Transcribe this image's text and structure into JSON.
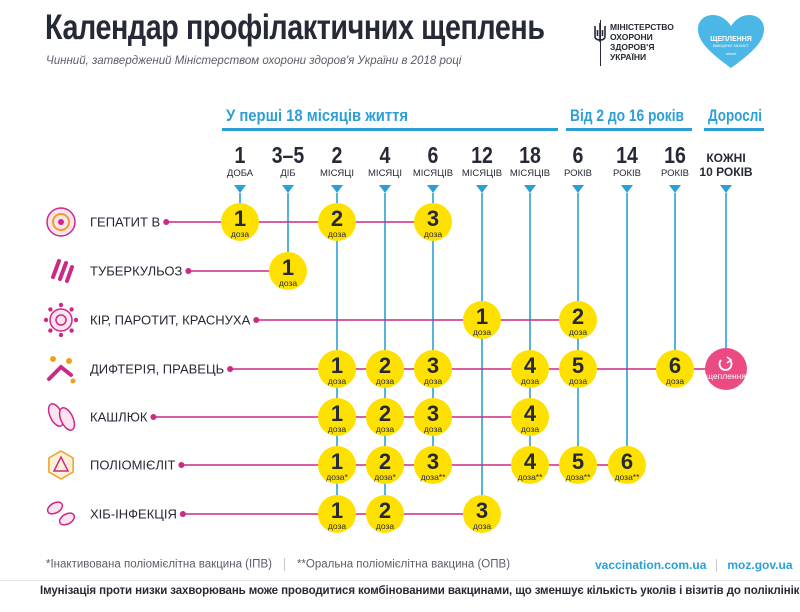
{
  "header": {
    "title": "Календар профілактичних щеплень",
    "subtitle": "Чинний, затверджений Міністерством охорони здоров'я України в 2018 році",
    "ministry_lines": [
      "МІНІСТЕРСТВО",
      "ОХОРОНИ",
      "ЗДОРОВ'Я",
      "УКРАЇНИ"
    ],
    "heart_logo": {
      "line1": "ЩЕПЛЕННЯ",
      "line2": "ВАКЦИНИ ЗАХИСТ",
      "brand": "unicef"
    }
  },
  "periods": [
    {
      "label": "У перші 18 місяців життя",
      "start_col": 0,
      "end_col": 6
    },
    {
      "label": "Від 2 до 16 років",
      "start_col": 7,
      "end_col": 9
    },
    {
      "label": "Дорослі",
      "start_col": 10,
      "end_col": 10
    }
  ],
  "ages": [
    {
      "num": "1",
      "unit": "ДОБА"
    },
    {
      "num": "3–5",
      "unit": "ДІБ"
    },
    {
      "num": "2",
      "unit": "МІСЯЦІ"
    },
    {
      "num": "4",
      "unit": "МІСЯЦІ"
    },
    {
      "num": "6",
      "unit": "МІСЯЦІВ"
    },
    {
      "num": "12",
      "unit": "МІСЯЦІВ"
    },
    {
      "num": "18",
      "unit": "МІСЯЦІВ"
    },
    {
      "num": "6",
      "unit": "РОКІВ"
    },
    {
      "num": "14",
      "unit": "РОКІВ"
    },
    {
      "num": "16",
      "unit": "РОКІВ"
    },
    {
      "num": "",
      "unit": "",
      "top": "КОЖНІ",
      "bottom": "10 РОКІВ"
    }
  ],
  "dose_word": "доза",
  "booster_label": "щеплення",
  "vaccines": [
    {
      "name": "ГЕПАТИТ B",
      "icon": "hepatitis-icon",
      "doses": [
        {
          "col": 0,
          "n": "1"
        },
        {
          "col": 2,
          "n": "2"
        },
        {
          "col": 4,
          "n": "3"
        }
      ]
    },
    {
      "name": "ТУБЕРКУЛЬОЗ",
      "icon": "tuberculosis-icon",
      "doses": [
        {
          "col": 1,
          "n": "1"
        }
      ]
    },
    {
      "name": "КІР, ПАРОТИТ, КРАСНУХА",
      "icon": "measles-icon",
      "doses": [
        {
          "col": 5,
          "n": "1"
        },
        {
          "col": 7,
          "n": "2"
        }
      ]
    },
    {
      "name": "ДИФТЕРІЯ, ПРАВЕЦЬ",
      "icon": "diphtheria-icon",
      "booster": true,
      "doses": [
        {
          "col": 2,
          "n": "1"
        },
        {
          "col": 3,
          "n": "2"
        },
        {
          "col": 4,
          "n": "3"
        },
        {
          "col": 6,
          "n": "4"
        },
        {
          "col": 7,
          "n": "5"
        },
        {
          "col": 9,
          "n": "6"
        }
      ]
    },
    {
      "name": "КАШЛЮК",
      "icon": "pertussis-icon",
      "doses": [
        {
          "col": 2,
          "n": "1"
        },
        {
          "col": 3,
          "n": "2"
        },
        {
          "col": 4,
          "n": "3"
        },
        {
          "col": 6,
          "n": "4"
        }
      ]
    },
    {
      "name": "ПОЛІОМІЄЛІТ",
      "icon": "polio-icon",
      "doses": [
        {
          "col": 2,
          "n": "1",
          "mark": "*"
        },
        {
          "col": 3,
          "n": "2",
          "mark": "*"
        },
        {
          "col": 4,
          "n": "3",
          "mark": "**"
        },
        {
          "col": 6,
          "n": "4",
          "mark": "**"
        },
        {
          "col": 7,
          "n": "5",
          "mark": "**"
        },
        {
          "col": 8,
          "n": "6",
          "mark": "**"
        }
      ]
    },
    {
      "name": "ХІБ-ІНФЕКЦІЯ",
      "icon": "hib-icon",
      "doses": [
        {
          "col": 2,
          "n": "1"
        },
        {
          "col": 3,
          "n": "2"
        },
        {
          "col": 5,
          "n": "3"
        }
      ]
    }
  ],
  "footnotes": {
    "ipv": "*Інактивована поліомієлітна вакцина (ІПВ)",
    "opv": "**Оральна поліомієлітна вакцина (ОПВ)"
  },
  "links": [
    "vaccination.com.ua",
    "moz.gov.ua"
  ],
  "bottom_note": "Імунізація проти низки захворювань може проводитися комбінованими вакцинами, що зменшує кількість уколів і візитів до поліклінік.",
  "colors": {
    "blue": "#2c9fd7",
    "magenta": "#cc2a86",
    "yellow": "#ffe100",
    "dark": "#262a36",
    "pink_booster": "#e94b82"
  }
}
